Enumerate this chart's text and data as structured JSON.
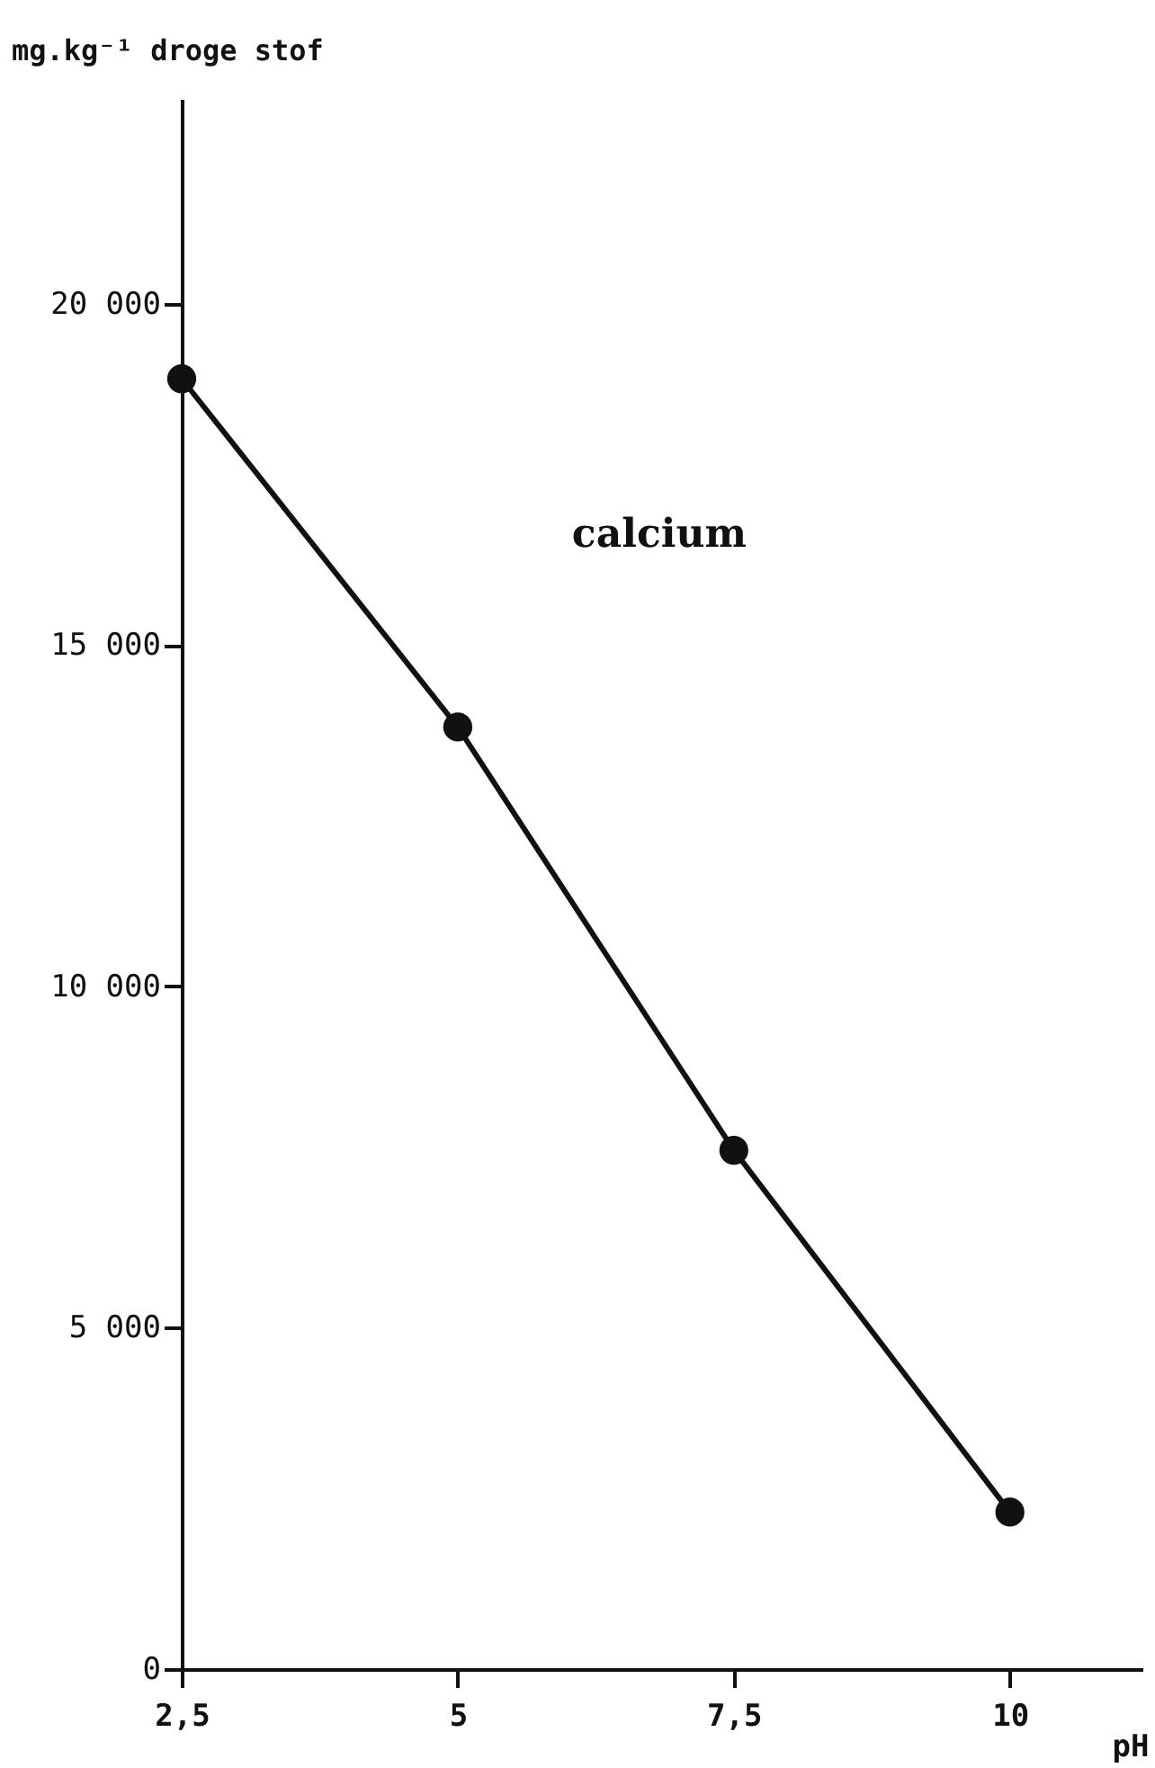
{
  "chart_data": {
    "type": "line",
    "xlabel": "pH",
    "ylabel": "mg.kg⁻¹ droge stof",
    "x": [
      2.5,
      5,
      7.5,
      10
    ],
    "series": [
      {
        "name": "calcium",
        "color": "#111111",
        "values": [
          18900,
          13800,
          7600,
          2300
        ]
      }
    ],
    "xlim": [
      2.5,
      11.2
    ],
    "ylim": [
      0,
      23000
    ],
    "xticks": [
      {
        "value": 2.5,
        "label": "2,5"
      },
      5,
      {
        "value": 7.5,
        "label": "7,5"
      },
      10
    ],
    "yticks": [
      0,
      {
        "value": 5000,
        "label": "5 000"
      },
      {
        "value": 10000,
        "label": "10 000"
      },
      {
        "value": 15000,
        "label": "15 000"
      },
      {
        "value": 20000,
        "label": "20 000"
      }
    ],
    "grid": false,
    "marker": "circle",
    "line_style": "solid"
  }
}
